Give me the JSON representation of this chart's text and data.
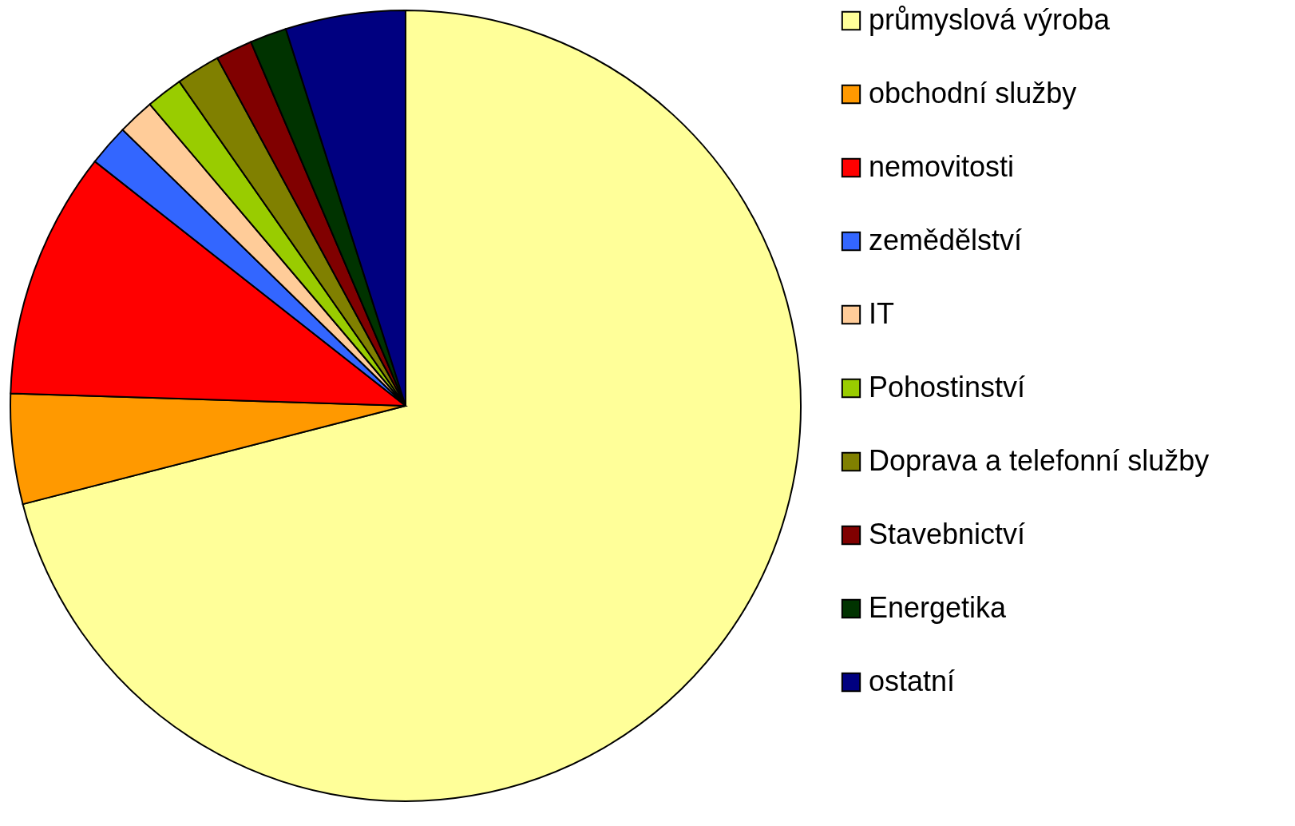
{
  "chart_data": {
    "type": "pie",
    "categories": [
      "průmyslová výroba",
      "obchodní služby",
      "nemovitosti",
      "zemědělství",
      "IT",
      "Pohostinství",
      "Doprava a telefonní služby",
      "Stavebnictví",
      "Energetika",
      "ostatní"
    ],
    "values": [
      71.0,
      4.5,
      10.1,
      1.7,
      1.5,
      1.5,
      1.8,
      1.5,
      1.5,
      4.9
    ],
    "colors": [
      "#ffff99",
      "#ff9900",
      "#ff0000",
      "#3366ff",
      "#ffcc99",
      "#99cc00",
      "#808000",
      "#800000",
      "#003300",
      "#000080"
    ],
    "legend": "right"
  }
}
